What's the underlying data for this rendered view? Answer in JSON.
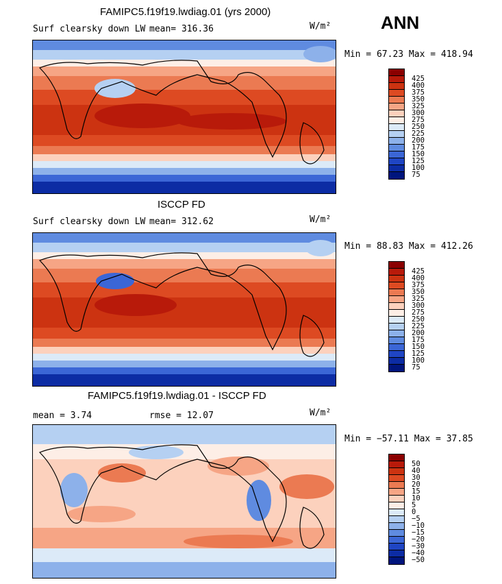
{
  "season": "ANN",
  "units": "W/m²",
  "panels": [
    {
      "title": "FAMIPC5.f19f19.lwdiag.01 (yrs 2000)",
      "left_label": "Surf clearsky down LW",
      "stat1": "mean= 316.36",
      "stat2": "",
      "minmax": "Min =  67.23 Max = 418.94",
      "levels": [
        "425",
        "400",
        "375",
        "350",
        "325",
        "300",
        "275",
        "250",
        "225",
        "200",
        "175",
        "150",
        "125",
        "100",
        "75"
      ],
      "colors": [
        "#8b0000",
        "#b81a0a",
        "#cc3311",
        "#dd4a22",
        "#eb7a52",
        "#f6a585",
        "#fcd1bd",
        "#fdeee6",
        "#dceaf8",
        "#b5d0f2",
        "#8db1ea",
        "#5f8be0",
        "#3b66d6",
        "#1f45c4",
        "#0c2ca4",
        "#00157d"
      ]
    },
    {
      "title": "ISCCP FD",
      "left_label": "Surf clearsky down LW",
      "stat1": "mean= 312.62",
      "stat2": "",
      "minmax": "Min =  88.83 Max = 412.26",
      "levels": [
        "425",
        "400",
        "375",
        "350",
        "325",
        "300",
        "275",
        "250",
        "225",
        "200",
        "175",
        "150",
        "125",
        "100",
        "75"
      ],
      "colors": [
        "#8b0000",
        "#b81a0a",
        "#cc3311",
        "#dd4a22",
        "#eb7a52",
        "#f6a585",
        "#fcd1bd",
        "#fdeee6",
        "#dceaf8",
        "#b5d0f2",
        "#8db1ea",
        "#5f8be0",
        "#3b66d6",
        "#1f45c4",
        "#0c2ca4",
        "#00157d"
      ]
    },
    {
      "title": "FAMIPC5.f19f19.lwdiag.01 - ISCCP FD",
      "left_label": "",
      "stat1": "mean =    3.74",
      "stat2": "rmse =   12.07",
      "minmax": "Min = −57.11 Max =  37.85",
      "levels": [
        "50",
        "40",
        "30",
        "20",
        "15",
        "10",
        "5",
        "0",
        "−5",
        "−10",
        "−15",
        "−20",
        "−30",
        "−40",
        "−50"
      ],
      "colors": [
        "#8b0000",
        "#b81a0a",
        "#cc3311",
        "#dd4a22",
        "#eb7a52",
        "#f6a585",
        "#fcd1bd",
        "#fdeee6",
        "#dceaf8",
        "#b5d0f2",
        "#8db1ea",
        "#5f8be0",
        "#3b66d6",
        "#1f45c4",
        "#0c2ca4",
        "#00157d"
      ]
    }
  ]
}
